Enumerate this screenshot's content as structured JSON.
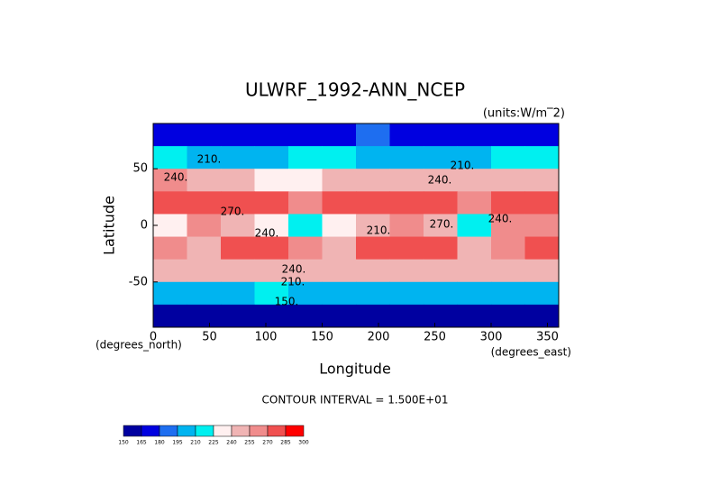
{
  "chart_data": {
    "type": "contour",
    "title": "ULWRF_1992-ANN_NCEP",
    "units": "(units:W/m‾2)",
    "x_label": "Longitude",
    "y_label": "Latitude",
    "x_units": "(degrees_east)",
    "y_units": "(degrees_north)",
    "footnote": "CONTOUR INTERVAL = 1.500E+01",
    "xlim": [
      0,
      360
    ],
    "ylim": [
      -90,
      90
    ],
    "xticks": [
      0,
      50,
      100,
      150,
      200,
      250,
      300,
      350
    ],
    "yticks": [
      -50,
      0,
      50
    ],
    "x": [
      15,
      45,
      75,
      105,
      135,
      165,
      195,
      225,
      255,
      285,
      315,
      345
    ],
    "y": [
      80,
      60,
      40,
      20,
      0,
      -20,
      -40,
      -60,
      -80
    ],
    "z": [
      [
        175,
        178,
        175,
        172,
        175,
        178,
        180,
        178,
        175,
        172,
        168,
        172
      ],
      [
        210,
        205,
        200,
        205,
        210,
        212,
        208,
        205,
        200,
        205,
        210,
        215
      ],
      [
        255,
        250,
        240,
        230,
        235,
        245,
        245,
        240,
        250,
        245,
        240,
        250
      ],
      [
        275,
        270,
        275,
        270,
        265,
        275,
        280,
        280,
        275,
        265,
        270,
        280
      ],
      [
        225,
        255,
        250,
        235,
        220,
        225,
        250,
        260,
        245,
        215,
        255,
        260
      ],
      [
        265,
        240,
        275,
        280,
        265,
        250,
        275,
        280,
        270,
        250,
        260,
        275
      ],
      [
        245,
        250,
        250,
        245,
        240,
        245,
        245,
        240,
        240,
        245,
        250,
        250
      ],
      [
        205,
        205,
        205,
        210,
        205,
        205,
        205,
        205,
        205,
        205,
        205,
        205
      ],
      [
        150,
        155,
        150,
        148,
        150,
        155,
        160,
        158,
        150,
        155,
        152,
        150
      ]
    ],
    "levels": [
      150,
      165,
      180,
      195,
      210,
      225,
      240,
      255,
      270,
      285,
      300
    ],
    "colors": [
      "#0000a0",
      "#0000e0",
      "#1e6ef0",
      "#00b4f0",
      "#00f0f0",
      "#fff0f0",
      "#f0b4b4",
      "#f08c8c",
      "#f05050",
      "#ff0000"
    ],
    "annotations": [
      "210.",
      "210.",
      "240.",
      "240.",
      "270.",
      "270.",
      "240.",
      "210.",
      "240.",
      "240.",
      "210.",
      "150."
    ]
  }
}
